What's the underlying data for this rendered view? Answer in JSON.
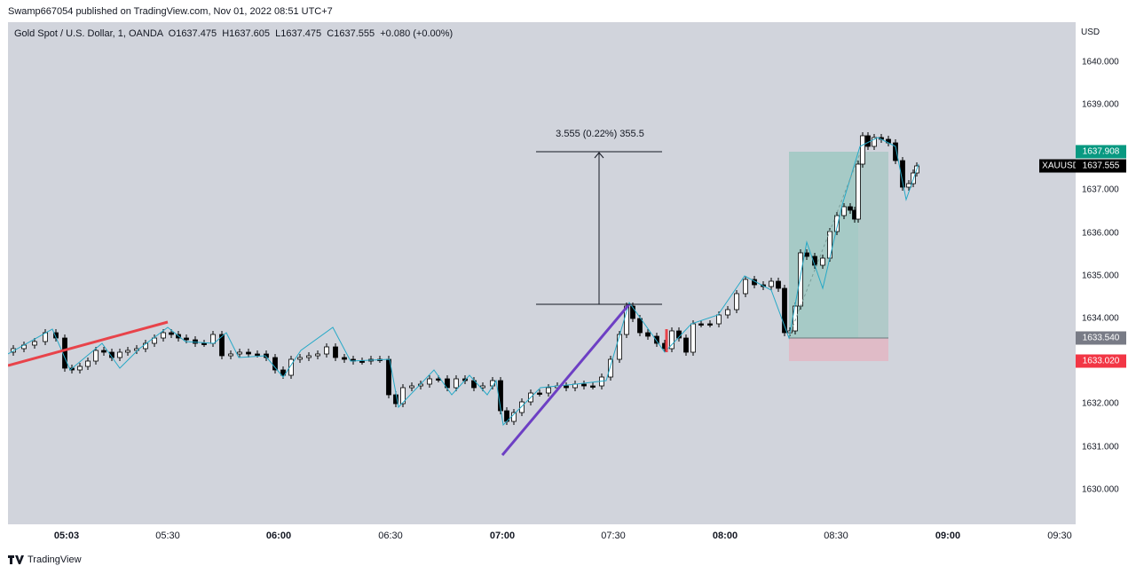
{
  "header": {
    "published_text": "Swamp667054 published on TradingView.com, Nov 01, 2022 08:51 UTC+7"
  },
  "legend": {
    "symbol_line": "Gold Spot / U.S. Dollar, 1, OANDA",
    "open": "O1637.475",
    "high": "H1637.605",
    "low": "L1637.475",
    "close": "C1637.555",
    "change": "+0.080 (+0.00%)"
  },
  "price_axis": {
    "currency": "USD",
    "ticks": [
      "1640.000",
      "1639.000",
      "1637.000",
      "1636.000",
      "1635.000",
      "1634.000",
      "1632.000",
      "1631.000",
      "1630.000"
    ],
    "labels": {
      "target": "1637.908",
      "last": "1637.555",
      "entry": "1633.540",
      "stop": "1633.020",
      "symbol": "XAUUSD"
    }
  },
  "time_axis": {
    "ticks": [
      {
        "label": "05:03",
        "bold": true
      },
      {
        "label": "05:30",
        "bold": false
      },
      {
        "label": "06:00",
        "bold": true
      },
      {
        "label": "06:30",
        "bold": false
      },
      {
        "label": "07:00",
        "bold": true
      },
      {
        "label": "07:30",
        "bold": false
      },
      {
        "label": "08:00",
        "bold": true
      },
      {
        "label": "08:30",
        "bold": false
      },
      {
        "label": "09:00",
        "bold": true
      },
      {
        "label": "09:30",
        "bold": false
      }
    ]
  },
  "measure_tool": {
    "text": "3.555 (0.22%) 355.5"
  },
  "footer": {
    "brand": "TradingView"
  },
  "colors": {
    "background": "#d1d4dc",
    "candle": "#000000",
    "zigzag": "#26a9c7",
    "red_trend": "#e8434a",
    "purple_trend": "#6d3fc4",
    "target_zone": "#9fc8c2",
    "stop_zone": "#e1b8c4",
    "target_label": "#089981",
    "stop_label": "#f23645",
    "entry_label": "#787b86"
  },
  "icons": {
    "logo": "tradingview-logo-icon",
    "arrow": "arrow-up-icon"
  }
}
